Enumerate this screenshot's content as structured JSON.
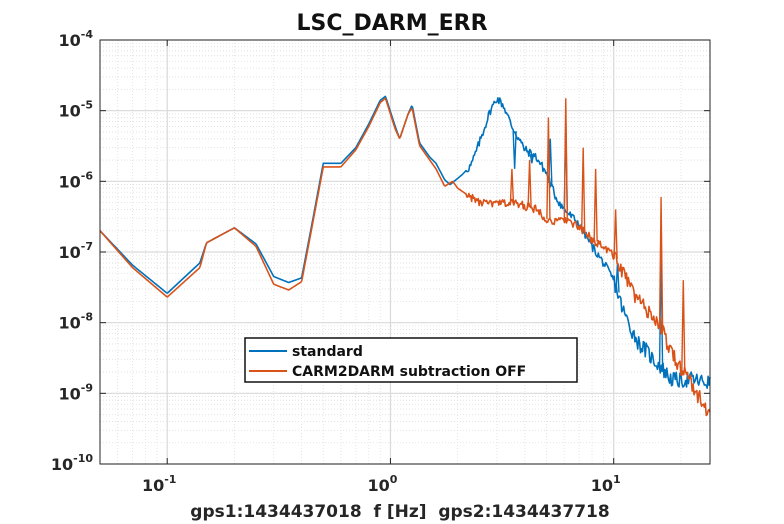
{
  "chart_data": {
    "type": "line",
    "title": "LSC_DARM_ERR",
    "xlabel": "gps1:1434437018  f [Hz]  gps2:1434437718",
    "ylabel": "",
    "xscale": "log",
    "yscale": "log",
    "xlim": [
      0.05,
      27
    ],
    "ylim": [
      1e-10,
      0.0001
    ],
    "grid": true,
    "legend_position": "bottom-center",
    "x_ticks": [
      {
        "value": 0.1,
        "base": "10",
        "exp": "-1"
      },
      {
        "value": 1,
        "base": "10",
        "exp": "0"
      },
      {
        "value": 10,
        "base": "10",
        "exp": "1"
      }
    ],
    "y_ticks": [
      {
        "value": 1e-10,
        "base": "10",
        "exp": "-10"
      },
      {
        "value": 1e-09,
        "base": "10",
        "exp": "-9"
      },
      {
        "value": 1e-08,
        "base": "10",
        "exp": "-8"
      },
      {
        "value": 1e-07,
        "base": "10",
        "exp": "-7"
      },
      {
        "value": 1e-06,
        "base": "10",
        "exp": "-6"
      },
      {
        "value": 1e-05,
        "base": "10",
        "exp": "-5"
      },
      {
        "value": 0.0001,
        "base": "10",
        "exp": "-4"
      }
    ],
    "series": [
      {
        "name": "standard",
        "color": "#0072BD",
        "points": [
          [
            0.05,
            2e-07
          ],
          [
            0.07,
            6.5e-08
          ],
          [
            0.1,
            2.6e-08
          ],
          [
            0.14,
            7e-08
          ],
          [
            0.15,
            1.35e-07
          ],
          [
            0.2,
            2.2e-07
          ],
          [
            0.25,
            1.3e-07
          ],
          [
            0.3,
            4.5e-08
          ],
          [
            0.35,
            3.7e-08
          ],
          [
            0.4,
            4.3e-08
          ],
          [
            0.45,
            3e-07
          ],
          [
            0.5,
            1.8e-06
          ],
          [
            0.6,
            1.8e-06
          ],
          [
            0.7,
            3e-06
          ],
          [
            0.8,
            6.5e-06
          ],
          [
            0.9,
            1.4e-05
          ],
          [
            0.95,
            1.6e-05
          ],
          [
            1.05,
            6e-06
          ],
          [
            1.1,
            4e-06
          ],
          [
            1.2,
            9e-06
          ],
          [
            1.25,
            1.2e-05
          ],
          [
            1.35,
            3.5e-06
          ],
          [
            1.5,
            2.2e-06
          ],
          [
            1.6,
            1.8e-06
          ],
          [
            1.75,
            1.05e-06
          ],
          [
            1.85,
            9e-07
          ],
          [
            2.0,
            1.1e-06
          ],
          [
            2.1,
            1.25e-06
          ],
          [
            2.3,
            1.7e-06
          ],
          [
            2.5,
            3.5e-06
          ],
          [
            2.8,
            1e-05
          ],
          [
            3.0,
            1.5e-05
          ],
          [
            3.2,
            1.2e-05
          ],
          [
            3.5,
            6e-06
          ],
          [
            4.0,
            2.8e-06
          ],
          [
            4.5,
            2.2e-06
          ],
          [
            5.0,
            1.3e-06
          ],
          [
            5.5,
            6e-07
          ],
          [
            6,
            4e-07
          ],
          [
            7,
            2.5e-07
          ],
          [
            8,
            1.2e-07
          ],
          [
            9,
            7e-08
          ],
          [
            10,
            4e-08
          ],
          [
            11,
            1.5e-08
          ],
          [
            12,
            8e-09
          ],
          [
            13,
            5e-09
          ],
          [
            14,
            4e-09
          ],
          [
            15,
            3e-09
          ],
          [
            16,
            2.5e-09
          ],
          [
            17,
            2e-09
          ],
          [
            18,
            1.6e-09
          ],
          [
            20,
            1.5e-09
          ],
          [
            22,
            1.6e-09
          ],
          [
            24,
            1.5e-09
          ],
          [
            27,
            1.4e-09
          ]
        ],
        "spikes": [
          [
            3.6,
            1.5e-06
          ],
          [
            4.3,
            1.8e-06
          ],
          [
            5.2,
            4e-06
          ],
          [
            6.1,
            7e-06
          ],
          [
            10.4,
            7e-08
          ],
          [
            16.3,
            1.2e-07
          ]
        ]
      },
      {
        "name": "CARM2DARM subtraction OFF",
        "color": "#D95319",
        "points": [
          [
            0.05,
            2e-07
          ],
          [
            0.07,
            6e-08
          ],
          [
            0.1,
            2.3e-08
          ],
          [
            0.14,
            6e-08
          ],
          [
            0.15,
            1.35e-07
          ],
          [
            0.2,
            2.2e-07
          ],
          [
            0.25,
            1.2e-07
          ],
          [
            0.3,
            3.5e-08
          ],
          [
            0.35,
            2.9e-08
          ],
          [
            0.4,
            3.8e-08
          ],
          [
            0.45,
            2.7e-07
          ],
          [
            0.5,
            1.6e-06
          ],
          [
            0.6,
            1.6e-06
          ],
          [
            0.7,
            2.8e-06
          ],
          [
            0.8,
            6e-06
          ],
          [
            0.9,
            1.3e-05
          ],
          [
            0.95,
            1.5e-05
          ],
          [
            1.05,
            5.5e-06
          ],
          [
            1.1,
            4e-06
          ],
          [
            1.2,
            9e-06
          ],
          [
            1.25,
            1.1e-05
          ],
          [
            1.35,
            3.2e-06
          ],
          [
            1.5,
            2e-06
          ],
          [
            1.6,
            1.5e-06
          ],
          [
            1.75,
            8.5e-07
          ],
          [
            1.9,
            1e-06
          ],
          [
            2.0,
            8e-07
          ],
          [
            2.2,
            6.5e-07
          ],
          [
            2.5,
            5e-07
          ],
          [
            2.8,
            4.8e-07
          ],
          [
            3.0,
            4.8e-07
          ],
          [
            3.5,
            5e-07
          ],
          [
            4.0,
            4.5e-07
          ],
          [
            4.5,
            4e-07
          ],
          [
            5.0,
            3e-07
          ],
          [
            5.5,
            2.6e-07
          ],
          [
            6,
            3e-07
          ],
          [
            7,
            2.2e-07
          ],
          [
            8,
            1.5e-07
          ],
          [
            9,
            1.2e-07
          ],
          [
            10,
            9e-08
          ],
          [
            11,
            5e-08
          ],
          [
            12,
            3e-08
          ],
          [
            13,
            2e-08
          ],
          [
            14,
            1.5e-08
          ],
          [
            15,
            1.2e-08
          ],
          [
            16,
            1e-08
          ],
          [
            17,
            6e-09
          ],
          [
            18,
            4e-09
          ],
          [
            20,
            2.2e-09
          ],
          [
            22,
            1.5e-09
          ],
          [
            24,
            9e-10
          ],
          [
            27,
            5e-10
          ]
        ],
        "spikes": [
          [
            3.5,
            1.5e-06
          ],
          [
            4.2,
            2e-06
          ],
          [
            5.1,
            8e-06
          ],
          [
            6.1,
            1.5e-05
          ],
          [
            7.3,
            3e-06
          ],
          [
            8.3,
            1.5e-06
          ],
          [
            10.2,
            4e-07
          ],
          [
            16.3,
            6e-07
          ],
          [
            20.5,
            4e-08
          ]
        ]
      }
    ]
  }
}
